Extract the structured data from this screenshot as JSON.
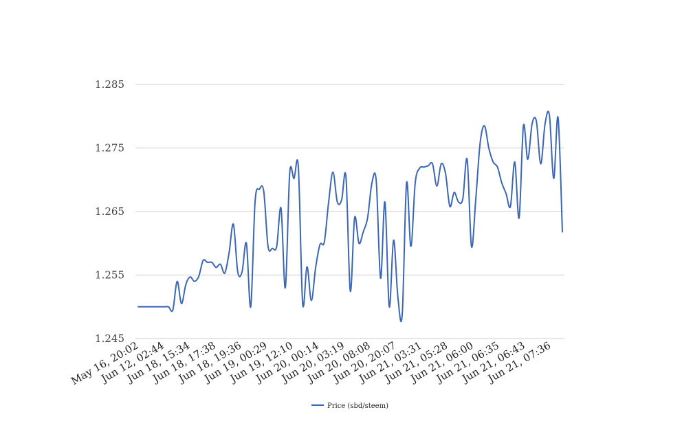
{
  "chart_data": {
    "type": "line",
    "title": "",
    "xlabel": "",
    "ylabel": "",
    "ylim": [
      1.245,
      1.285
    ],
    "y_ticks": [
      "1.245",
      "1.255",
      "1.265",
      "1.275",
      "1.285"
    ],
    "x_tick_labels": [
      "May 16, 20:02",
      "Jun 12, 02:44",
      "Jun 18, 15:34",
      "Jun 18, 17:38",
      "Jun 18, 19:36",
      "Jun 19, 00:29",
      "Jun 19, 12:10",
      "Jun 20, 00:14",
      "Jun 20, 03:19",
      "Jun 20, 08:08",
      "Jun 20, 20:07",
      "Jun 21, 03:31",
      "Jun 21, 05:28",
      "Jun 21, 06:00",
      "Jun 21, 06:35",
      "Jun 21, 06:43",
      "Jun 21, 07:36"
    ],
    "grid": true,
    "legend_position": "bottom",
    "series": [
      {
        "name": "Price (sbd/steem)",
        "color": "#3a66b8",
        "values": [
          1.25,
          1.25,
          1.25,
          1.25,
          1.25,
          1.25,
          1.25,
          1.25,
          1.2495,
          1.254,
          1.2505,
          1.2535,
          1.2547,
          1.254,
          1.2548,
          1.2573,
          1.257,
          1.257,
          1.2562,
          1.2567,
          1.2553,
          1.2585,
          1.263,
          1.2555,
          1.2555,
          1.26,
          1.25,
          1.2665,
          1.2685,
          1.2682,
          1.2595,
          1.2592,
          1.2595,
          1.2655,
          1.253,
          1.271,
          1.2702,
          1.272,
          1.2505,
          1.2563,
          1.251,
          1.2562,
          1.2598,
          1.2602,
          1.2665,
          1.2712,
          1.2665,
          1.2668,
          1.2705,
          1.2525,
          1.264,
          1.26,
          1.2618,
          1.264,
          1.2695,
          1.2698,
          1.2545,
          1.2665,
          1.25,
          1.2605,
          1.2515,
          1.2488,
          1.2695,
          1.2595,
          1.2695,
          1.2718,
          1.272,
          1.2722,
          1.2725,
          1.269,
          1.2725,
          1.271,
          1.2658,
          1.268,
          1.2665,
          1.267,
          1.2732,
          1.2595,
          1.267,
          1.2758,
          1.2785,
          1.275,
          1.2728,
          1.272,
          1.2695,
          1.2678,
          1.2658,
          1.2728,
          1.264,
          1.2785,
          1.2732,
          1.2788,
          1.2792,
          1.2725,
          1.2788,
          1.2802,
          1.2702,
          1.2798,
          1.2618
        ]
      }
    ]
  }
}
